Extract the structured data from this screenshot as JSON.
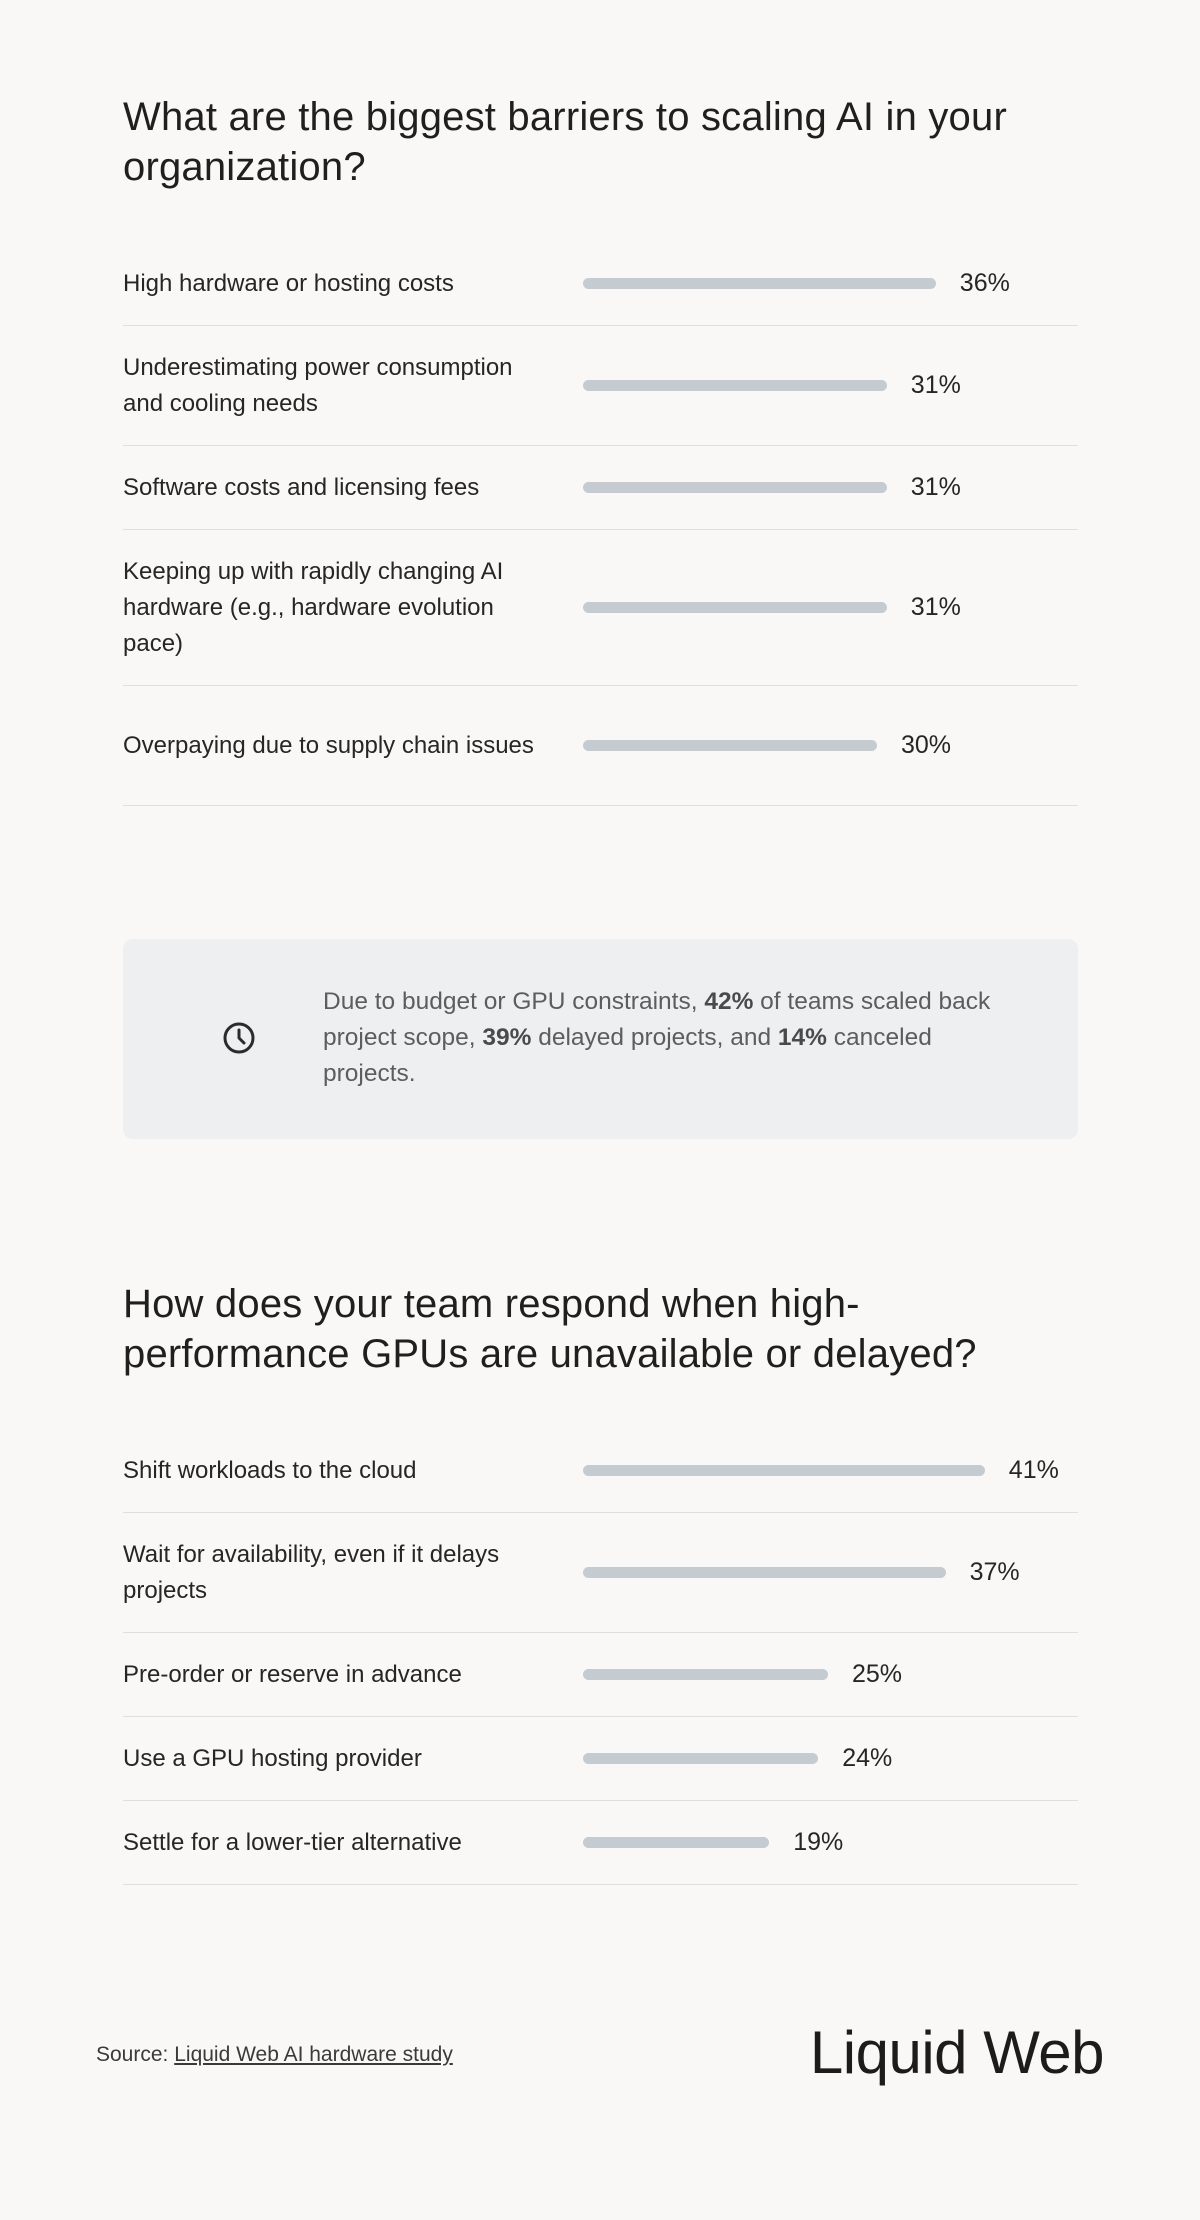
{
  "chart_data": [
    {
      "type": "bar",
      "title": "What are the biggest barriers to scaling AI in your organization?",
      "categories": [
        "High hardware or hosting costs",
        "Underestimating power consumption and cooling needs",
        "Software costs and licensing fees",
        "Keeping up with rapidly changing AI hardware (e.g., hardware evolution pace)",
        "Overpaying due to supply chain issues"
      ],
      "values": [
        36,
        31,
        31,
        31,
        30
      ],
      "value_labels": [
        "36%",
        "31%",
        "31%",
        "31%",
        "30%"
      ],
      "orientation": "horizontal",
      "bar_color": "#c4ccd1"
    },
    {
      "type": "bar",
      "title": "How does your team respond when high-performance GPUs are unavailable or delayed?",
      "categories": [
        "Shift workloads to the cloud",
        "Wait for availability, even if it delays projects",
        "Pre-order or reserve in advance",
        "Use a GPU hosting provider",
        "Settle for a lower-tier alternative"
      ],
      "values": [
        41,
        37,
        25,
        24,
        19
      ],
      "value_labels": [
        "41%",
        "37%",
        "25%",
        "24%",
        "19%"
      ],
      "orientation": "horizontal",
      "bar_color": "#c4ccd1"
    }
  ],
  "callout": {
    "icon": "clock-icon",
    "text_1": "Due to budget or GPU constraints, ",
    "stat_1": "42%",
    "text_2": " of teams scaled back project scope, ",
    "stat_2": "39%",
    "text_3": " delayed projects, and ",
    "stat_3": "14%",
    "text_4": " canceled projects."
  },
  "footer": {
    "source_prefix": "Source: ",
    "source_link": "Liquid Web AI hardware study",
    "logo": "Liquid Web"
  }
}
